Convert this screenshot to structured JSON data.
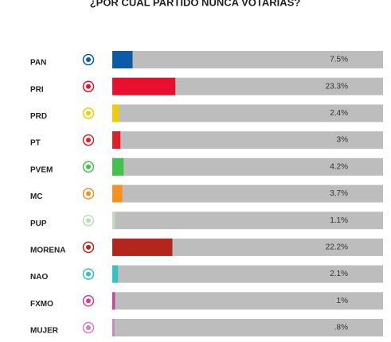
{
  "chart_data": {
    "type": "barh",
    "title": "¿POR CUAL PARTIDO NUNCA VOTARIAS?",
    "categories": [
      "PAN",
      "PRI",
      "PRD",
      "PT",
      "PVEM",
      "MC",
      "PUP",
      "MORENA",
      "NAO",
      "FXMO",
      "MUJER"
    ],
    "values": [
      7.5,
      23.3,
      2.4,
      3,
      4.2,
      3.7,
      1.1,
      22.2,
      2.1,
      1,
      0.8
    ],
    "value_labels": [
      "7.5%",
      "23.3%",
      "2.4%",
      "3%",
      "4.2%",
      "3.7%",
      "1.1%",
      "22.2%",
      "2.1%",
      "1%",
      ".8%"
    ],
    "colors": [
      "#0b5ba8",
      "#e8102e",
      "#f0cc00",
      "#e01f26",
      "#41c24a",
      "#f7901e",
      "#b9dfb9",
      "#b3261e",
      "#2fc4c9",
      "#d63c9b",
      "#d97ac8"
    ],
    "xlim": [
      0,
      100
    ]
  }
}
